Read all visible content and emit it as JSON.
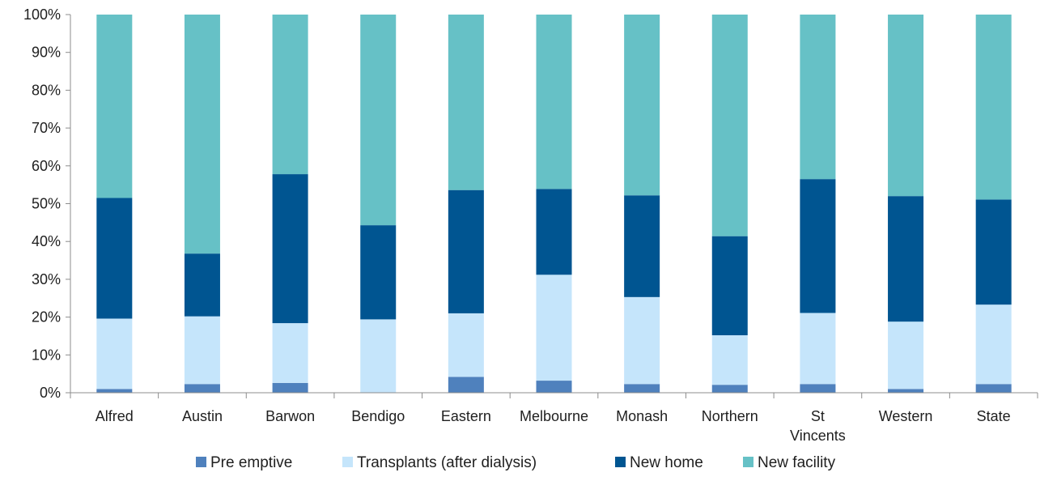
{
  "chart_data": {
    "type": "bar",
    "stacked": true,
    "percent_stacked": true,
    "title": "",
    "xlabel": "",
    "ylabel": "",
    "ylim": [
      0,
      100
    ],
    "y_ticks": [
      "0%",
      "10%",
      "20%",
      "30%",
      "40%",
      "50%",
      "60%",
      "70%",
      "80%",
      "90%",
      "100%"
    ],
    "grid": false,
    "legend_position": "bottom",
    "categories": [
      "Alfred",
      "Austin",
      "Barwon",
      "Bendigo",
      "Eastern",
      "Melbourne",
      "Monash",
      "Northern",
      "St Vincents",
      "Western",
      "State"
    ],
    "category_lines": [
      [
        "Alfred"
      ],
      [
        "Austin"
      ],
      [
        "Barwon"
      ],
      [
        "Bendigo"
      ],
      [
        "Eastern"
      ],
      [
        "Melbourne"
      ],
      [
        "Monash"
      ],
      [
        "Northern"
      ],
      [
        "St",
        "Vincents"
      ],
      [
        "Western"
      ],
      [
        "State"
      ]
    ],
    "series": [
      {
        "name": "Pre emptive",
        "color": "#4f81bd",
        "values": [
          1.0,
          2.3,
          2.6,
          0.0,
          4.2,
          3.2,
          2.3,
          2.1,
          2.3,
          1.0,
          2.3
        ]
      },
      {
        "name": "Transplants (after dialysis)",
        "color": "#c5e5fb",
        "values": [
          18.6,
          17.9,
          15.8,
          19.4,
          16.8,
          28.0,
          23.0,
          13.1,
          18.8,
          17.8,
          21.0
        ]
      },
      {
        "name": "New home",
        "color": "#005591",
        "values": [
          31.9,
          16.6,
          39.4,
          24.9,
          32.6,
          22.7,
          26.9,
          26.2,
          35.4,
          33.2,
          27.8
        ]
      },
      {
        "name": "New facility",
        "color": "#66c1c6",
        "values": [
          48.5,
          63.2,
          42.2,
          55.7,
          46.4,
          46.1,
          47.8,
          58.6,
          43.5,
          48.0,
          48.9
        ]
      }
    ]
  }
}
